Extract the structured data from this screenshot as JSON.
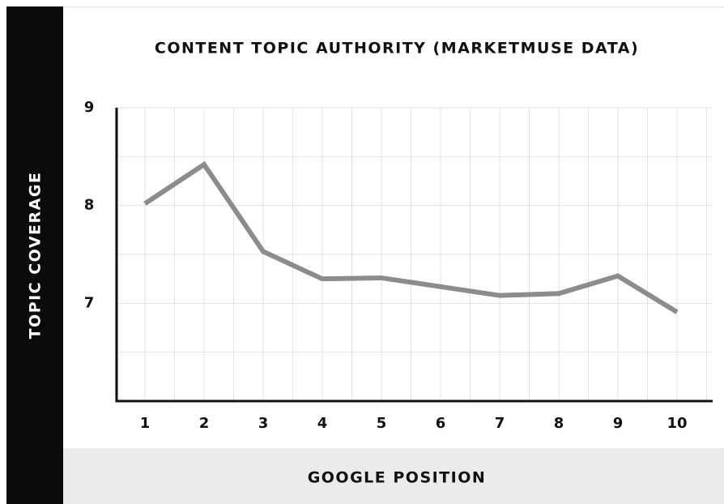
{
  "chart_data": {
    "type": "line",
    "title": "CONTENT TOPIC AUTHORITY (MARKETMUSE DATA)",
    "x_label": "GOOGLE POSITION",
    "y_label": "TOPIC COVERAGE",
    "categories": [
      "1",
      "2",
      "3",
      "4",
      "5",
      "6",
      "7",
      "8",
      "9",
      "10"
    ],
    "values": [
      8.02,
      8.42,
      7.53,
      7.25,
      7.26,
      7.17,
      7.08,
      7.1,
      7.28,
      6.91
    ],
    "color": "#8c8c8c",
    "ylim": [
      6,
      9
    ],
    "yticks": [
      7,
      8,
      9
    ],
    "grid": true
  }
}
